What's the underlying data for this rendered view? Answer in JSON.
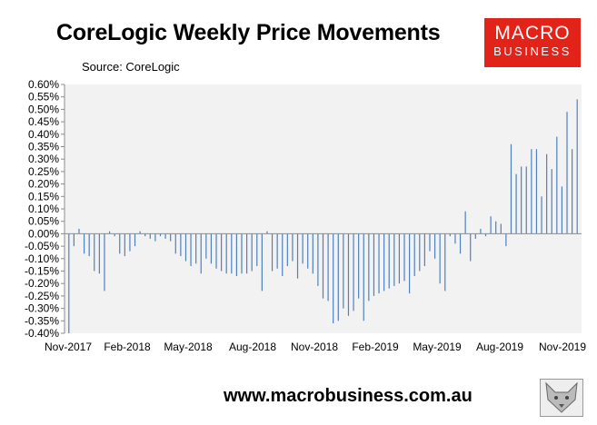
{
  "chart_data": {
    "type": "bar",
    "title": "CoreLogic Weekly Price Movements",
    "subtitle": "Source: CoreLogic",
    "x_tick_labels": [
      "Nov-2017",
      "Feb-2018",
      "May-2018",
      "Aug-2018",
      "Nov-2018",
      "Feb-2019",
      "May-2019",
      "Aug-2019",
      "Nov-2019"
    ],
    "y_tick_labels": [
      "0.60%",
      "0.55%",
      "0.50%",
      "0.45%",
      "0.40%",
      "0.35%",
      "0.30%",
      "0.25%",
      "0.20%",
      "0.15%",
      "0.10%",
      "0.05%",
      "0.00%",
      "-0.05%",
      "-0.10%",
      "-0.15%",
      "-0.20%",
      "-0.25%",
      "-0.30%",
      "-0.35%",
      "-0.40%"
    ],
    "ylim": [
      -0.4,
      0.6
    ],
    "grid": false,
    "bar_color": "#4f81bd",
    "values": [
      -0.4,
      -0.05,
      0.02,
      -0.08,
      -0.09,
      -0.15,
      -0.16,
      -0.23,
      0.01,
      -0.01,
      -0.08,
      -0.09,
      -0.07,
      -0.05,
      0.01,
      -0.01,
      -0.02,
      -0.03,
      -0.01,
      -0.02,
      -0.03,
      -0.08,
      -0.09,
      -0.11,
      -0.13,
      -0.12,
      -0.16,
      -0.1,
      -0.12,
      -0.14,
      -0.15,
      -0.16,
      -0.16,
      -0.17,
      -0.16,
      -0.16,
      -0.15,
      -0.13,
      -0.23,
      0.01,
      -0.15,
      -0.14,
      -0.17,
      -0.13,
      -0.11,
      -0.18,
      -0.12,
      -0.14,
      -0.16,
      -0.21,
      -0.26,
      -0.27,
      -0.36,
      -0.35,
      -0.3,
      -0.33,
      -0.31,
      -0.26,
      -0.35,
      -0.27,
      -0.25,
      -0.24,
      -0.23,
      -0.22,
      -0.21,
      -0.2,
      -0.19,
      -0.24,
      -0.17,
      -0.15,
      -0.13,
      -0.07,
      -0.1,
      -0.2,
      -0.23,
      -0.01,
      -0.04,
      -0.08,
      0.09,
      -0.11,
      -0.02,
      0.02,
      -0.01,
      0.07,
      0.05,
      0.04,
      -0.05,
      0.36,
      0.24,
      0.27,
      0.27,
      0.34,
      0.34,
      0.15,
      0.32,
      0.26,
      0.39,
      0.19,
      0.49,
      0.34,
      0.54
    ]
  },
  "footer": {
    "url": "www.macrobusiness.com.au"
  },
  "logo": {
    "line1": "MACRO",
    "line2": "BUSINESS",
    "color": "#e2231a"
  }
}
